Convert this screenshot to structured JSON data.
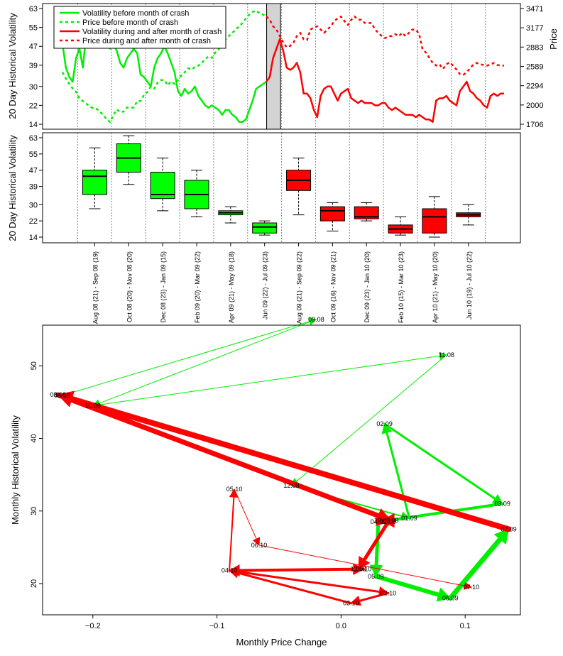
{
  "colors": {
    "green": "#00ee00",
    "red": "#ff0000",
    "shade": "#d3d3d3",
    "box_green": "#00ff00"
  },
  "chart_data": [
    {
      "type": "line",
      "ylabel": "20 Day Historical Volatility",
      "ylabel_right": "Price",
      "y_ticks": [
        "14",
        "22",
        "30",
        "39",
        "47",
        "55",
        "63"
      ],
      "y_right_ticks": [
        "1706",
        "2000",
        "2294",
        "2589",
        "2883",
        "3177",
        "3471"
      ],
      "ylim": [
        14,
        63
      ],
      "ylim_right": [
        1706,
        3471
      ],
      "legend": [
        {
          "label": "Volatility before month of crash",
          "color": "#00ee00",
          "dash": false
        },
        {
          "label": "Price before month of crash",
          "color": "#00ee00",
          "dash": true
        },
        {
          "label": "Volatility during and after month of crash",
          "color": "#ff0000",
          "dash": false
        },
        {
          "label": "Price during and after month of crash",
          "color": "#ff0000",
          "dash": true
        }
      ],
      "legend_position": "top-left",
      "x_range": [
        0,
        26
      ],
      "crash_band": [
        12.02,
        12.84
      ],
      "period_dividers": [
        0.9,
        2.9,
        4.9,
        6.9,
        8.9,
        10.9,
        12.9,
        14.9,
        16.9,
        18.9,
        20.9,
        22.9,
        24.9
      ],
      "series": [
        {
          "name": "Volatility before month of crash",
          "color": "#00ee00",
          "dash": false,
          "axis": "left",
          "x": [
            0,
            0.2,
            0.4,
            0.6,
            0.8,
            1.0,
            1.2,
            1.4,
            1.6,
            1.8,
            2.0,
            2.2,
            2.4,
            2.6,
            2.8,
            3.0,
            3.2,
            3.4,
            3.6,
            3.8,
            4.0,
            4.2,
            4.4,
            4.6,
            4.8,
            5.0,
            5.2,
            5.4,
            5.6,
            5.8,
            6.0,
            6.2,
            6.4,
            6.6,
            6.8,
            7.0,
            7.2,
            7.4,
            7.6,
            7.8,
            8.0,
            8.2,
            8.4,
            8.6,
            8.8,
            9.0,
            9.2,
            9.4,
            9.6,
            9.8,
            10.0,
            10.2,
            10.4,
            10.6,
            10.8,
            11.0,
            11.2,
            11.4,
            11.6,
            11.8,
            12.0
          ],
          "y": [
            48,
            38,
            34,
            32,
            42,
            46,
            38,
            52,
            55,
            60,
            62,
            58,
            55,
            52,
            46,
            48,
            45,
            40,
            38,
            42,
            44,
            46,
            44,
            35,
            34,
            32,
            30,
            38,
            42,
            44,
            47,
            44,
            40,
            36,
            28,
            26,
            29,
            27,
            28,
            30,
            26,
            24,
            22,
            21,
            22,
            21,
            20,
            18,
            20,
            20,
            18,
            17,
            15,
            15,
            16,
            20,
            24,
            29,
            30,
            31,
            32
          ]
        },
        {
          "name": "Price before month of crash",
          "color": "#00ee00",
          "dash": true,
          "axis": "right",
          "x": [
            0,
            0.2,
            0.4,
            0.6,
            0.8,
            1.0,
            1.2,
            1.4,
            1.6,
            1.8,
            2.0,
            2.2,
            2.4,
            2.6,
            2.8,
            3.0,
            3.2,
            3.4,
            3.6,
            3.8,
            4.0,
            4.2,
            4.4,
            4.6,
            4.8,
            5.0,
            5.2,
            5.4,
            5.6,
            5.8,
            6.0,
            6.2,
            6.4,
            6.6,
            6.8,
            7.0,
            7.2,
            7.4,
            7.6,
            7.8,
            8.0,
            8.2,
            8.4,
            8.6,
            8.8,
            9.0,
            9.2,
            9.4,
            9.6,
            9.8,
            10.0,
            10.2,
            10.4,
            10.6,
            10.8,
            11.0,
            11.2,
            11.4,
            11.6,
            11.8,
            12.0
          ],
          "y": [
            2500,
            2400,
            2320,
            2250,
            2200,
            2100,
            2060,
            2020,
            1980,
            1950,
            1940,
            1900,
            1850,
            1780,
            1740,
            1850,
            1930,
            1890,
            1900,
            1960,
            1960,
            1960,
            2060,
            2060,
            2150,
            2200,
            2280,
            2250,
            2340,
            2380,
            2380,
            2300,
            2360,
            2320,
            2380,
            2450,
            2500,
            2560,
            2540,
            2580,
            2600,
            2640,
            2700,
            2740,
            2720,
            2800,
            2850,
            2950,
            3000,
            3050,
            3100,
            3150,
            3200,
            3250,
            3320,
            3380,
            3420,
            3440,
            3400,
            3380,
            3350
          ]
        },
        {
          "name": "Volatility during and after month of crash",
          "color": "#ff0000",
          "dash": false,
          "axis": "left",
          "x": [
            12.0,
            12.2,
            12.4,
            12.6,
            12.8,
            13.0,
            13.2,
            13.4,
            13.6,
            13.8,
            14.0,
            14.2,
            14.4,
            14.6,
            14.8,
            15.0,
            15.2,
            15.4,
            15.6,
            15.8,
            16.0,
            16.2,
            16.4,
            16.6,
            16.8,
            17.0,
            17.2,
            17.4,
            17.6,
            17.8,
            18.0,
            18.2,
            18.4,
            18.6,
            18.8,
            19.0,
            19.2,
            19.4,
            19.6,
            19.8,
            20.0,
            20.2,
            20.4,
            20.6,
            20.8,
            21.0,
            21.2,
            21.4,
            21.6,
            21.8,
            22.0,
            22.2,
            22.4,
            22.6,
            22.8,
            23.0,
            23.2,
            23.4,
            23.6,
            23.8,
            24.0,
            24.2,
            24.4,
            24.6,
            24.8,
            25.0,
            25.2,
            25.4,
            25.6,
            25.8,
            26.0
          ],
          "y": [
            32,
            34,
            42,
            46,
            50,
            45,
            38,
            37,
            38,
            40,
            36,
            27,
            27,
            25,
            20,
            17,
            26,
            29,
            30,
            30,
            27,
            24,
            27,
            28,
            29,
            25,
            24,
            23,
            24,
            23,
            23,
            23,
            22,
            22,
            23,
            23,
            21,
            20,
            21,
            20,
            19,
            18,
            18,
            18,
            17,
            18,
            17,
            16,
            16,
            15,
            24,
            25,
            25,
            26,
            24,
            23,
            22,
            28,
            30,
            32,
            28,
            27,
            25,
            24,
            22,
            21,
            26,
            27,
            26,
            27,
            27
          ]
        },
        {
          "name": "Price during and after month of crash",
          "color": "#ff0000",
          "dash": true,
          "axis": "right",
          "x": [
            12.0,
            12.2,
            12.4,
            12.6,
            12.8,
            13.0,
            13.2,
            13.4,
            13.6,
            13.8,
            14.0,
            14.2,
            14.4,
            14.6,
            14.8,
            15.0,
            15.2,
            15.4,
            15.6,
            15.8,
            16.0,
            16.2,
            16.4,
            16.6,
            16.8,
            17.0,
            17.2,
            17.4,
            17.6,
            17.8,
            18.0,
            18.2,
            18.4,
            18.6,
            18.8,
            19.0,
            19.2,
            19.4,
            19.6,
            19.8,
            20.0,
            20.2,
            20.4,
            20.6,
            20.8,
            21.0,
            21.2,
            21.4,
            21.6,
            21.8,
            22.0,
            22.2,
            22.4,
            22.6,
            22.8,
            23.0,
            23.2,
            23.4,
            23.6,
            23.8,
            24.0,
            24.2,
            24.4,
            24.6,
            24.8,
            25.0,
            25.2,
            25.4,
            25.6,
            25.8,
            26.0
          ],
          "y": [
            3350,
            3300,
            3200,
            3150,
            3050,
            2950,
            2880,
            2900,
            2950,
            3050,
            3100,
            3000,
            2990,
            3150,
            3180,
            3200,
            3150,
            3100,
            3150,
            3200,
            3280,
            3320,
            3350,
            3280,
            3220,
            3300,
            3350,
            3300,
            3300,
            3250,
            3250,
            3250,
            3150,
            3100,
            3050,
            3020,
            3050,
            3050,
            3080,
            3050,
            3100,
            3050,
            3100,
            3150,
            3150,
            3080,
            2850,
            2800,
            2720,
            2640,
            2600,
            2620,
            2550,
            2620,
            2650,
            2600,
            2540,
            2470,
            2460,
            2500,
            2560,
            2620,
            2640,
            2620,
            2610,
            2600,
            2620,
            2640,
            2610,
            2600,
            2600
          ]
        }
      ]
    },
    {
      "type": "box",
      "ylabel": "20 Day Historical Volatility",
      "y_ticks": [
        "14",
        "22",
        "30",
        "39",
        "47",
        "55",
        "63"
      ],
      "ylim": [
        14,
        63
      ],
      "x_range": [
        0,
        26
      ],
      "categories": [
        "Aug 08 (21) - Sep 08 (19)",
        "Oct 08 (20) - Nov 08 (20)",
        "Dec 08 (23) - Jan 09 (15)",
        "Feb 09 (20) - Mar 09 (22)",
        "Apr 09 (21) - May 09 (18)",
        "Jun 09 (22) - Jul 09 (23)",
        "Aug 09 (21) - Sep 09 (22)",
        "Oct 09 (16) - Nov 09 (21)",
        "Dec 09 (23) - Jan 10 (20)",
        "Feb 10 (15) - Mar 10 (23)",
        "Apr 10 (21) - May 10 (20)",
        "Jun 10 (19) - Jul 10 (22)"
      ],
      "boxes": [
        {
          "color": "#00ff00",
          "min": 28,
          "q1": 35,
          "median": 44,
          "q3": 47,
          "max": 58
        },
        {
          "color": "#00ff00",
          "min": 40,
          "q1": 46,
          "median": 53,
          "q3": 60,
          "max": 64
        },
        {
          "color": "#00ff00",
          "min": 27,
          "q1": 33,
          "median": 35,
          "q3": 46,
          "max": 53
        },
        {
          "color": "#00ff00",
          "min": 24,
          "q1": 28,
          "median": 35,
          "q3": 42,
          "max": 47
        },
        {
          "color": "#00ff00",
          "min": 21,
          "q1": 25,
          "median": 26,
          "q3": 27,
          "max": 29
        },
        {
          "color": "#00ff00",
          "min": 15,
          "q1": 16,
          "median": 19,
          "q3": 21,
          "max": 22
        },
        {
          "color": "#ff0000",
          "min": 25,
          "q1": 37,
          "median": 42,
          "q3": 47,
          "max": 53
        },
        {
          "color": "#ff0000",
          "min": 17,
          "q1": 22,
          "median": 27,
          "q3": 29,
          "max": 31
        },
        {
          "color": "#ff0000",
          "min": 22,
          "q1": 23,
          "median": 24,
          "q3": 29,
          "max": 31
        },
        {
          "color": "#ff0000",
          "min": 15,
          "q1": 16,
          "median": 18,
          "q3": 20,
          "max": 24
        },
        {
          "color": "#ff0000",
          "min": 14,
          "q1": 16,
          "median": 24,
          "q3": 28,
          "max": 34
        },
        {
          "color": "#ff0000",
          "min": 20,
          "q1": 24,
          "median": 25,
          "q3": 26,
          "max": 30
        }
      ]
    },
    {
      "type": "scatter",
      "xlabel": "Monthly Price Change",
      "ylabel": "Monthly Historical Volatility",
      "x_ticks": [
        "−0.2",
        "−0.1",
        "0.0",
        "0.1"
      ],
      "x_tick_values": [
        -0.2,
        -0.1,
        0.0,
        0.1
      ],
      "y_ticks": [
        "20",
        "30",
        "40",
        "50"
      ],
      "y_tick_values": [
        20,
        30,
        40,
        50
      ],
      "xlim": [
        -0.2405,
        0.1445
      ],
      "ylim": [
        15.7,
        55.6
      ],
      "points": [
        {
          "label": "08.08",
          "x": -0.225,
          "y": 45.9
        },
        {
          "label": "09.08",
          "x": -0.02,
          "y": 56.4
        },
        {
          "label": "10.08",
          "x": -0.2,
          "y": 44.5
        },
        {
          "label": "11.08",
          "x": 0.085,
          "y": 51.5
        },
        {
          "label": "12.08",
          "x": -0.04,
          "y": 33.5
        },
        {
          "label": "01.09",
          "x": 0.055,
          "y": 29.0
        },
        {
          "label": "02.09",
          "x": 0.035,
          "y": 42.0
        },
        {
          "label": "03.09",
          "x": 0.13,
          "y": 31.0
        },
        {
          "label": "04.09",
          "x": 0.03,
          "y": 28.5
        },
        {
          "label": "05.09",
          "x": 0.028,
          "y": 21.0
        },
        {
          "label": "06.09",
          "x": 0.088,
          "y": 18.0
        },
        {
          "label": "07.09",
          "x": 0.135,
          "y": 27.5
        },
        {
          "label": "08.09",
          "x": -0.228,
          "y": 46.0
        },
        {
          "label": "09.09",
          "x": 0.04,
          "y": 28.7
        },
        {
          "label": "10.09",
          "x": 0.033,
          "y": 28.7
        },
        {
          "label": "11.09",
          "x": 0.038,
          "y": 28.5
        },
        {
          "label": "12.09",
          "x": 0.014,
          "y": 22.0
        },
        {
          "label": "01.10",
          "x": 0.018,
          "y": 22.0
        },
        {
          "label": "02.10",
          "x": 0.038,
          "y": 18.7
        },
        {
          "label": "03.10",
          "x": 0.008,
          "y": 17.3
        },
        {
          "label": "04.10",
          "x": -0.09,
          "y": 21.8
        },
        {
          "label": "05.10",
          "x": -0.086,
          "y": 33.0
        },
        {
          "label": "06.10",
          "x": -0.066,
          "y": 25.3
        },
        {
          "label": "07.10",
          "x": 0.105,
          "y": 19.5
        }
      ],
      "arrows": [
        {
          "from": "08.08",
          "to": "09.08",
          "color": "#00ee00",
          "lwd": 1
        },
        {
          "from": "09.08",
          "to": "10.08",
          "color": "#00ee00",
          "lwd": 1
        },
        {
          "from": "10.08",
          "to": "11.08",
          "color": "#00ee00",
          "lwd": 1
        },
        {
          "from": "11.08",
          "to": "12.08",
          "color": "#00ee00",
          "lwd": 1
        },
        {
          "from": "12.08",
          "to": "01.09",
          "color": "#00ee00",
          "lwd": 2
        },
        {
          "from": "01.09",
          "to": "02.09",
          "color": "#00ee00",
          "lwd": 3
        },
        {
          "from": "02.09",
          "to": "03.09",
          "color": "#00ee00",
          "lwd": 3
        },
        {
          "from": "03.09",
          "to": "04.09",
          "color": "#00ee00",
          "lwd": 4
        },
        {
          "from": "04.09",
          "to": "05.09",
          "color": "#00ee00",
          "lwd": 5
        },
        {
          "from": "05.09",
          "to": "06.09",
          "color": "#00ee00",
          "lwd": 6
        },
        {
          "from": "06.09",
          "to": "07.09",
          "color": "#00ee00",
          "lwd": 7
        },
        {
          "from": "07.09",
          "to": "08.09",
          "color": "#ff0000",
          "lwd": 8
        },
        {
          "from": "08.09",
          "to": "09.09",
          "color": "#ff0000",
          "lwd": 7
        },
        {
          "from": "09.09",
          "to": "10.09",
          "color": "#ff0000",
          "lwd": 6
        },
        {
          "from": "10.09",
          "to": "11.09",
          "color": "#ff0000",
          "lwd": 5
        },
        {
          "from": "11.09",
          "to": "12.09",
          "color": "#ff0000",
          "lwd": 5
        },
        {
          "from": "12.09",
          "to": "01.10",
          "color": "#ff0000",
          "lwd": 4
        },
        {
          "from": "01.10",
          "to": "04.10",
          "color": "#ff0000",
          "lwd": 4
        },
        {
          "from": "04.10",
          "to": "02.10",
          "color": "#ff0000",
          "lwd": 3
        },
        {
          "from": "02.10",
          "to": "03.10",
          "color": "#ff0000",
          "lwd": 3
        },
        {
          "from": "03.10",
          "to": "04.10",
          "color": "#ff0000",
          "lwd": 3
        },
        {
          "from": "04.10",
          "to": "05.10",
          "color": "#ff0000",
          "lwd": 2
        },
        {
          "from": "05.10",
          "to": "06.10",
          "color": "#ff0000",
          "lwd": 1
        },
        {
          "from": "06.10",
          "to": "07.10",
          "color": "#ff0000",
          "lwd": 1
        }
      ]
    }
  ]
}
